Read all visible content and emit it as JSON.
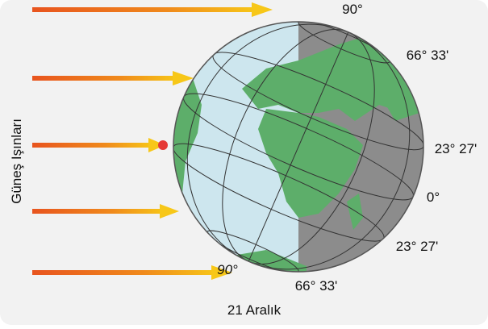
{
  "labels": [
    "90°",
    "66° 33'",
    "23° 27'",
    "0°",
    "23° 27'",
    "66° 33'",
    "90°"
  ],
  "side_title": "Güneş Işınları",
  "caption": "21 Aralık"
}
